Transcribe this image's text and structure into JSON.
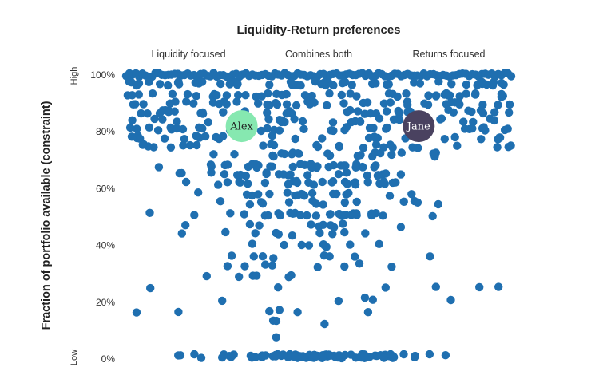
{
  "chart_data": {
    "type": "scatter",
    "title": "Liquidity-Return preferences",
    "xlabel": "",
    "ylabel": "Fraction of portfolio available (constraint)",
    "x_categories": [
      "Liquidity focused",
      "Combines both",
      "Returns focused"
    ],
    "xlim": [
      0,
      1
    ],
    "ylim": [
      0,
      100
    ],
    "y_ticks": [
      "0%",
      "20%",
      "40%",
      "60%",
      "80%",
      "100%"
    ],
    "y_tick_values": [
      0,
      20,
      40,
      60,
      80,
      100
    ],
    "y_extremes": {
      "low": "Low",
      "high": "High"
    },
    "grid": false,
    "point_color": "#1f6fb0",
    "seed": 7,
    "rows": [
      {
        "y": 100,
        "n": 120,
        "dist": "all"
      },
      {
        "y": 97,
        "n": 50,
        "dist": "all"
      },
      {
        "y": 93,
        "n": 45,
        "dist": "all"
      },
      {
        "y": 90,
        "n": 40,
        "dist": "all"
      },
      {
        "y": 87,
        "n": 38,
        "dist": "all"
      },
      {
        "y": 84,
        "n": 35,
        "dist": "all"
      },
      {
        "y": 81,
        "n": 34,
        "dist": "all"
      },
      {
        "y": 78,
        "n": 26,
        "dist": "all"
      },
      {
        "y": 75,
        "n": 26,
        "dist": "all"
      },
      {
        "y": 72,
        "n": 22,
        "dist": "mid"
      },
      {
        "y": 68,
        "n": 32,
        "dist": "mid"
      },
      {
        "y": 65,
        "n": 22,
        "dist": "mid"
      },
      {
        "y": 62,
        "n": 26,
        "dist": "mid"
      },
      {
        "y": 58,
        "n": 18,
        "dist": "mid"
      },
      {
        "y": 55,
        "n": 14,
        "dist": "mid"
      },
      {
        "y": 51,
        "n": 28,
        "dist": "mid"
      },
      {
        "y": 47,
        "n": 10,
        "dist": "mid"
      },
      {
        "y": 44,
        "n": 10,
        "dist": "mid"
      },
      {
        "y": 40,
        "n": 9,
        "dist": "mid"
      },
      {
        "y": 36,
        "n": 8,
        "dist": "mid"
      },
      {
        "y": 33,
        "n": 8,
        "dist": "mid"
      },
      {
        "y": 29,
        "n": 6,
        "dist": "mid"
      },
      {
        "y": 25,
        "n": 6,
        "dist": "all"
      },
      {
        "y": 21,
        "n": 5,
        "dist": "all"
      },
      {
        "y": 17,
        "n": 6,
        "dist": "all"
      },
      {
        "y": 13,
        "n": 3,
        "dist": "all"
      },
      {
        "y": 8,
        "n": 1,
        "dist": "mid"
      },
      {
        "y": 1,
        "n": 90,
        "dist": "mid"
      }
    ],
    "highlights": [
      {
        "name": "Alex",
        "x": 0.3,
        "y": 82,
        "color": "#86e8b0",
        "text_color": "#222222"
      },
      {
        "name": "Jane",
        "x": 0.76,
        "y": 82,
        "color": "#4a4260",
        "text_color": "#ffffff"
      }
    ]
  }
}
